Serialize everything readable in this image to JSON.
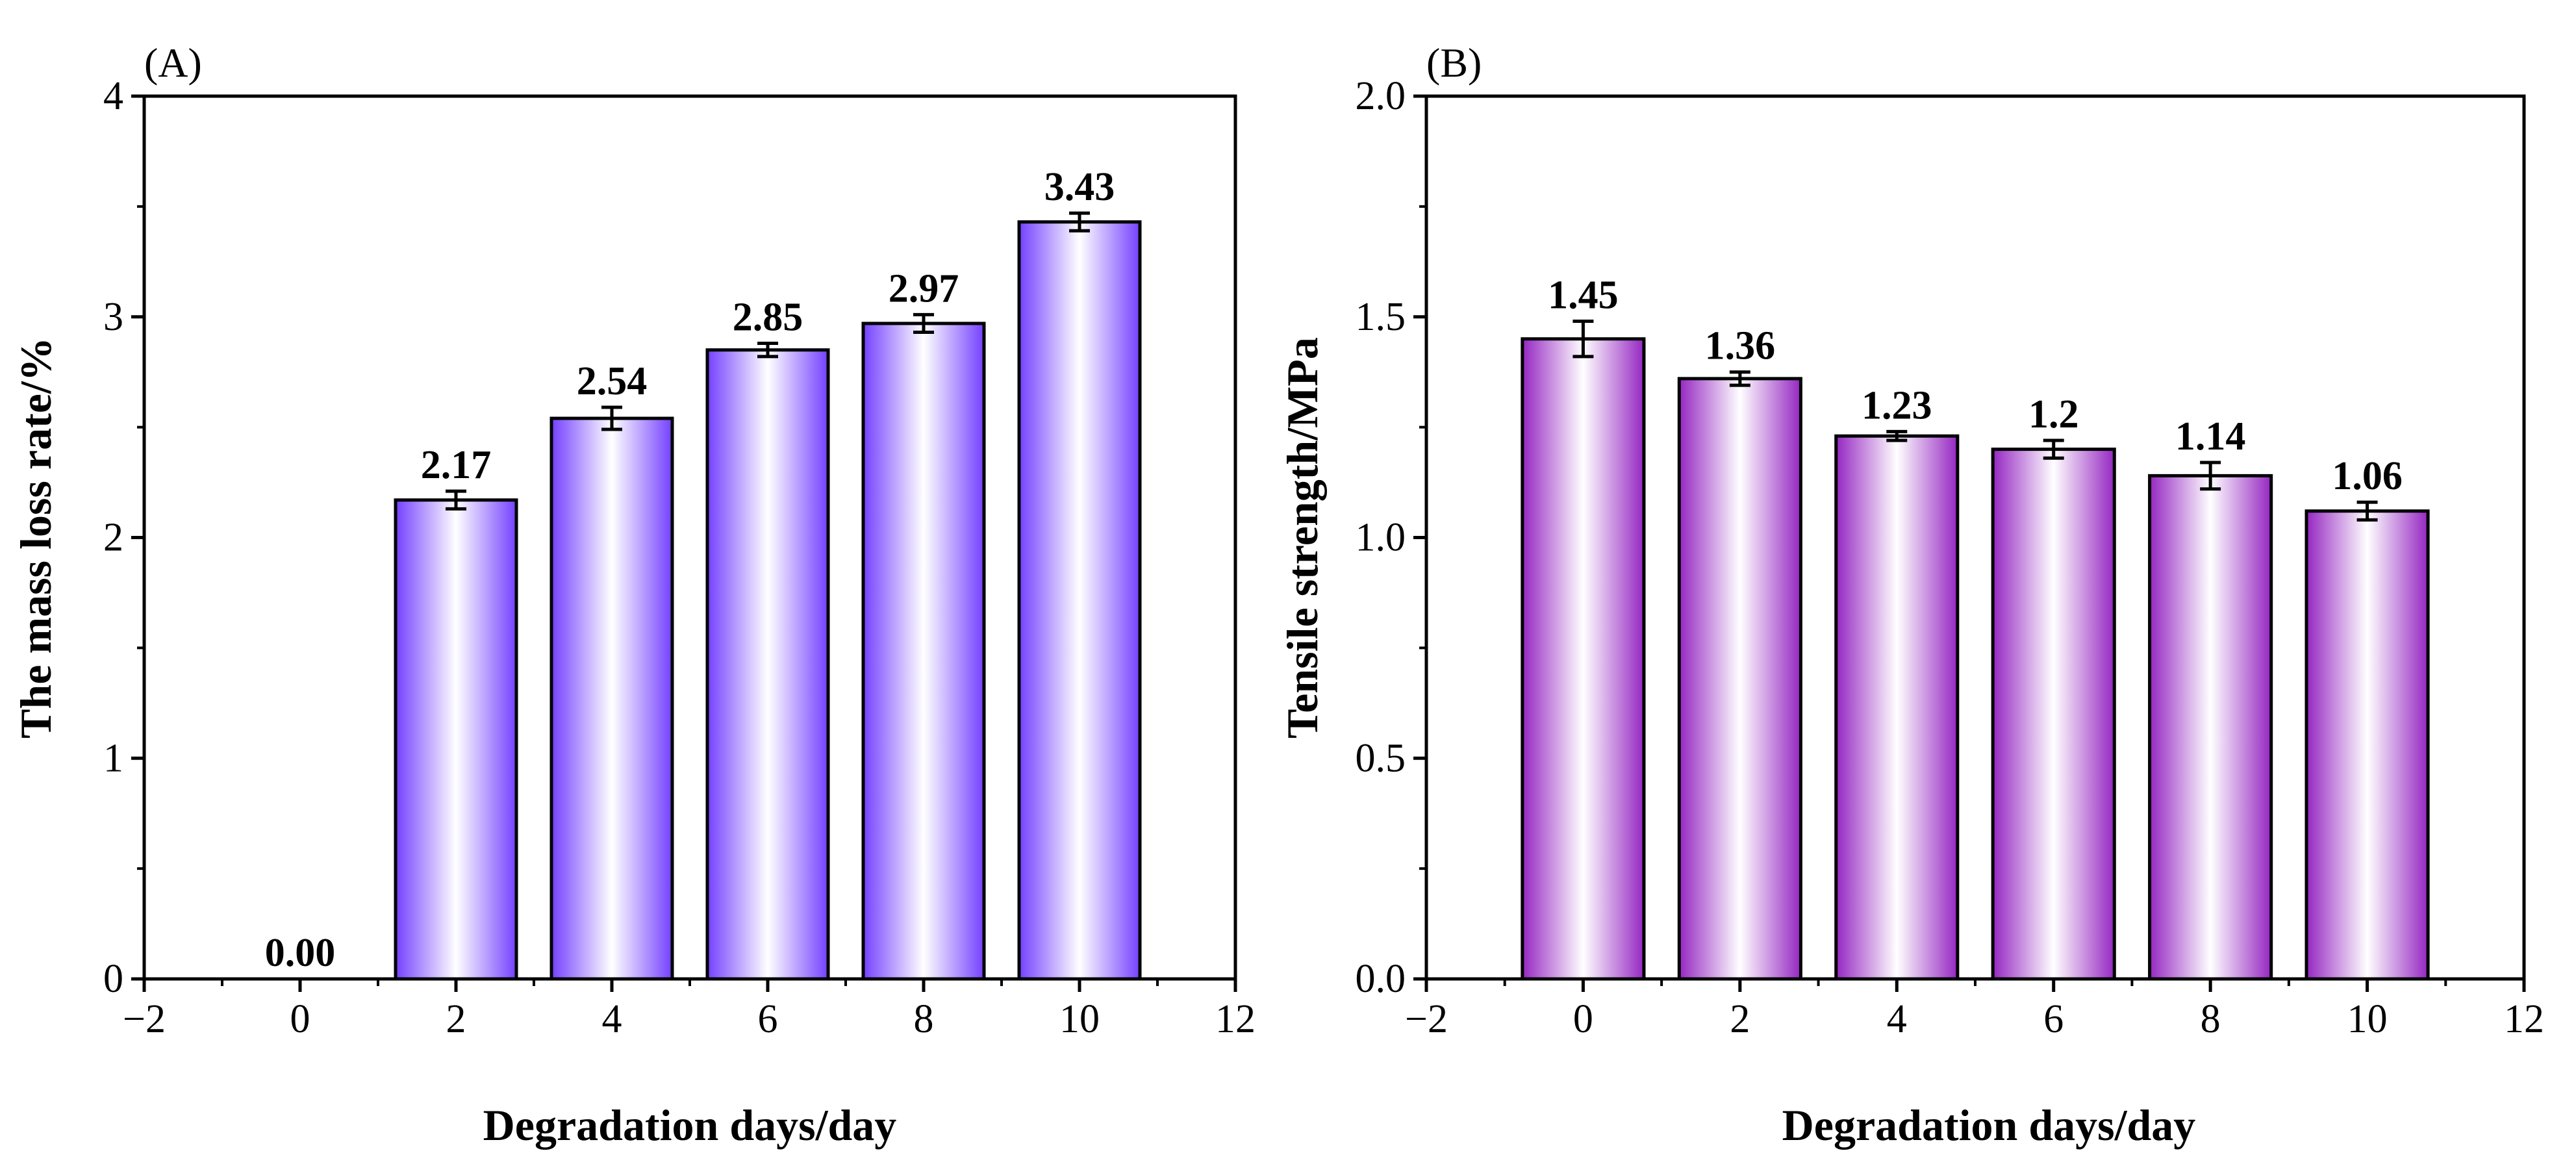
{
  "chart_data": [
    {
      "type": "bar",
      "panel": "(A)",
      "xlabel": "Degradation days/day",
      "ylabel": "The mass loss rate/%",
      "x": [
        0,
        2,
        4,
        6,
        8,
        10
      ],
      "values": [
        0.0,
        2.17,
        2.54,
        2.85,
        2.97,
        3.43
      ],
      "value_labels": [
        "0.00",
        "2.17",
        "2.54",
        "2.85",
        "2.97",
        "3.43"
      ],
      "errors": [
        0,
        0.04,
        0.05,
        0.03,
        0.04,
        0.04
      ],
      "xlim": [
        -2,
        12
      ],
      "ylim": [
        0,
        4
      ],
      "xticks": [
        -2,
        0,
        2,
        4,
        6,
        8,
        10,
        12
      ],
      "xtick_labels": [
        "−2",
        "0",
        "2",
        "4",
        "6",
        "8",
        "10",
        "12"
      ],
      "yticks": [
        0,
        1,
        2,
        3,
        4
      ],
      "ytick_labels": [
        "0",
        "1",
        "2",
        "3",
        "4"
      ],
      "bar_color": "#7b4dff"
    },
    {
      "type": "bar",
      "panel": "(B)",
      "xlabel": "Degradation days/day",
      "ylabel": "Tensile strength/MPa",
      "x": [
        0,
        2,
        4,
        6,
        8,
        10
      ],
      "values": [
        1.45,
        1.36,
        1.23,
        1.2,
        1.14,
        1.06
      ],
      "value_labels": [
        "1.45",
        "1.36",
        "1.23",
        "1.2",
        "1.14",
        "1.06"
      ],
      "errors": [
        0.04,
        0.015,
        0.01,
        0.02,
        0.03,
        0.02
      ],
      "xlim": [
        -2,
        12
      ],
      "ylim": [
        0,
        2
      ],
      "xticks": [
        -2,
        0,
        2,
        4,
        6,
        8,
        10,
        12
      ],
      "xtick_labels": [
        "−2",
        "0",
        "2",
        "4",
        "6",
        "8",
        "10",
        "12"
      ],
      "yticks": [
        0,
        0.5,
        1.0,
        1.5,
        2.0
      ],
      "ytick_labels": [
        "0.0",
        "0.5",
        "1.0",
        "1.5",
        "2.0"
      ],
      "bar_color": "#9a2ec4"
    }
  ]
}
